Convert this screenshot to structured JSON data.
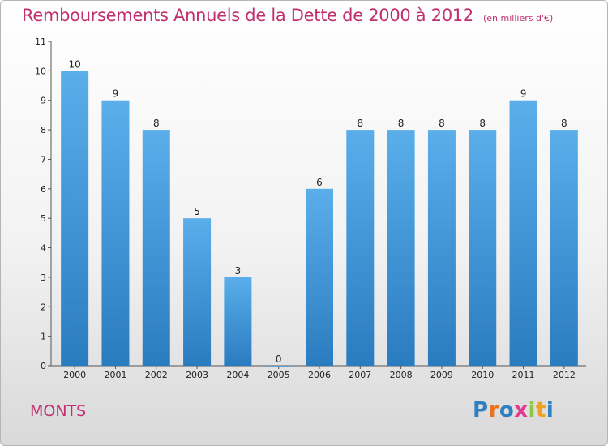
{
  "header": {
    "title": "Remboursements Annuels de la Dette de 2000 à 2012",
    "subtitle": "(en milliers d'€)"
  },
  "footer": {
    "commune": "MONTS",
    "logo_letters": [
      "P",
      "r",
      "o",
      "x",
      "i",
      "t",
      "i"
    ],
    "logo_colors": [
      "#2f7fc1",
      "#e8731c",
      "#2f7fc1",
      "#e23a8f",
      "#8dc63f",
      "#f0a020",
      "#2f7fc1"
    ]
  },
  "chart_data": {
    "type": "bar",
    "title": "Remboursements Annuels de la Dette de 2000 à 2012",
    "categories": [
      "2000",
      "2001",
      "2002",
      "2003",
      "2004",
      "2005",
      "2006",
      "2007",
      "2008",
      "2009",
      "2010",
      "2011",
      "2012"
    ],
    "values": [
      10,
      9,
      8,
      5,
      3,
      0,
      6,
      8,
      8,
      8,
      8,
      9,
      8
    ],
    "ylim": [
      0,
      11
    ],
    "yticks": [
      0,
      1,
      2,
      3,
      4,
      5,
      6,
      7,
      8,
      9,
      10,
      11
    ],
    "grid": false,
    "bar_color_top": "#5aaeea",
    "bar_color_bottom": "#2a7cc0"
  }
}
